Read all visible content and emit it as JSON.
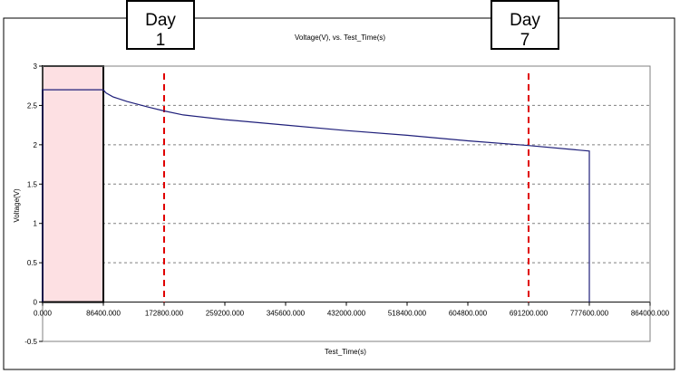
{
  "chart_data": {
    "type": "line",
    "title": "Voltage(V),  vs. Test_Time(s)",
    "xlabel": "Test_Time(s)",
    "ylabel": "Voltage(V)",
    "xlim": [
      0,
      864000
    ],
    "ylim": [
      -0.5,
      3
    ],
    "x_ticks": [
      0,
      86400,
      172800,
      259200,
      345600,
      432000,
      518400,
      604800,
      691200,
      777600,
      864000
    ],
    "x_tick_labels": [
      "0.000",
      "86400.000",
      "172800.000",
      "259200.000",
      "345600.000",
      "432000.000",
      "518400.000",
      "604800.000",
      "691200.000",
      "777600.000",
      "864000.000"
    ],
    "y_ticks": [
      -0.5,
      0,
      0.5,
      1,
      1.5,
      2,
      2.5,
      3
    ],
    "y_tick_labels": [
      "-0.5",
      "0",
      "0.5",
      "1",
      "1.5",
      "2",
      "2.5",
      "3"
    ],
    "grid": "horizontal-dashed",
    "series": [
      {
        "color": "#1f1f7a",
        "x": [
          0,
          0,
          86400,
          90000,
          100000,
          120000,
          150000,
          172800,
          200000,
          259200,
          345600,
          432000,
          518400,
          604800,
          691200,
          777600,
          777600
        ],
        "y": [
          0,
          2.7,
          2.7,
          2.66,
          2.61,
          2.55,
          2.48,
          2.43,
          2.38,
          2.32,
          2.25,
          2.18,
          2.12,
          2.05,
          1.99,
          1.92,
          0
        ]
      }
    ],
    "highlight_region": {
      "x_range": [
        0,
        86400
      ],
      "y_range": [
        0,
        3
      ],
      "fill": "#fde0e3",
      "border": "#000000"
    },
    "markers": [
      {
        "x": 172800,
        "label": "Day\n1",
        "color": "#e00000"
      },
      {
        "x": 691200,
        "label": "Day\n7",
        "color": "#e00000"
      }
    ]
  }
}
